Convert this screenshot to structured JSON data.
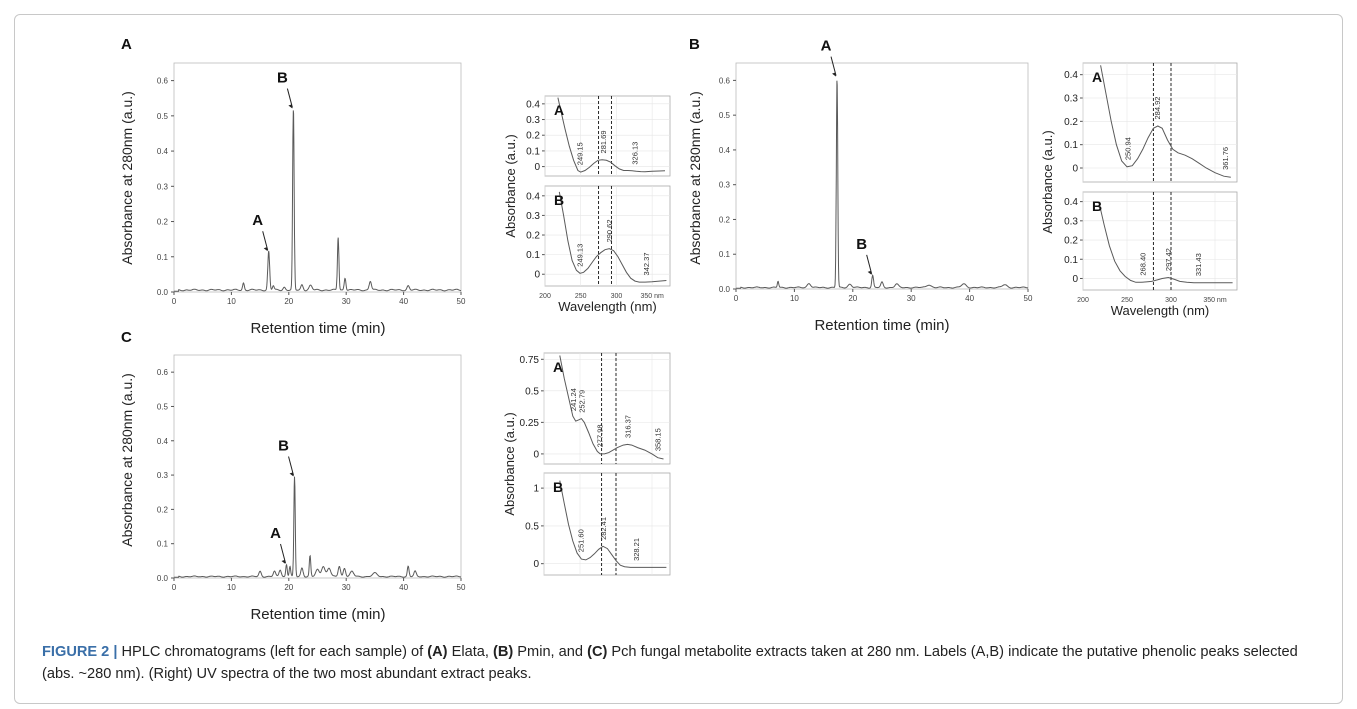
{
  "caption": {
    "lead": "FIGURE 2 |",
    "t1": " HPLC chromatograms (left for each sample) of ",
    "b1": "(A)",
    "t2": " Elata, ",
    "b2": "(B)",
    "t3": " Pmin, and ",
    "b3": "(C)",
    "t4": " Pch fungal metabolite extracts taken at 280 nm. Labels (A,B) indicate the putative phenolic peaks selected (abs. ~280 nm). (Right) UV spectra of the two most abundant extract peaks."
  },
  "colors": {
    "trace": "#5a5a5a",
    "caption_lead": "#3a6fa8",
    "axis": "#555555"
  },
  "chart_data": [
    {
      "panel": "A",
      "type": "line",
      "xlabel": "Retention time (min)",
      "ylabel": "Absorbance at 280nm (a.u.)",
      "xlim": [
        0,
        50
      ],
      "ylim": [
        0,
        0.65
      ],
      "xticks": [
        "0",
        "10",
        "20",
        "30",
        "40",
        "50"
      ],
      "yticks": [
        "0.0",
        "0.1",
        "0.2",
        "0.3",
        "0.4",
        "0.5",
        "0.6"
      ],
      "baseline": 0.008,
      "peaks": [
        [
          12.1,
          0.02,
          0.15
        ],
        [
          16.5,
          0.11,
          0.16
        ],
        [
          17.3,
          0.012,
          0.15
        ],
        [
          19.2,
          0.008,
          0.2
        ],
        [
          20.8,
          0.515,
          0.13
        ],
        [
          22.3,
          0.015,
          0.2
        ],
        [
          23.8,
          0.013,
          0.25
        ],
        [
          28.6,
          0.15,
          0.13
        ],
        [
          29.8,
          0.035,
          0.15
        ],
        [
          34.2,
          0.025,
          0.2
        ],
        [
          40.8,
          0.012,
          0.2
        ]
      ],
      "annotations": [
        {
          "label": "A",
          "x": 16.5,
          "y": 0.11
        },
        {
          "label": "B",
          "x": 20.8,
          "y": 0.515
        }
      ]
    },
    {
      "panel": "A-A",
      "type": "line",
      "xlabel": "",
      "ylabel": "",
      "xlim": [
        200,
        375
      ],
      "ylim": [
        -0.06,
        0.45
      ],
      "xticks": [
        "200",
        "250",
        "300",
        "350 nm"
      ],
      "yticks": [
        "0",
        "0.1",
        "0.2",
        "0.3",
        "0.4"
      ],
      "series": [
        {
          "x": [
            218,
            222,
            228,
            234,
            240,
            246,
            250,
            256,
            262,
            268,
            274,
            280,
            286,
            292,
            298,
            304,
            310,
            316,
            322,
            328,
            334,
            340,
            350,
            360,
            368
          ],
          "y": [
            0.44,
            0.36,
            0.24,
            0.13,
            0.04,
            -0.025,
            -0.035,
            -0.025,
            -0.005,
            0.02,
            0.04,
            0.043,
            0.04,
            0.028,
            0.005,
            -0.015,
            -0.025,
            -0.025,
            -0.027,
            -0.03,
            -0.032,
            -0.033,
            -0.03,
            -0.028,
            -0.026
          ]
        }
      ],
      "peak_labels": [
        {
          "text": "249.15",
          "x": 249.15
        },
        {
          "text": "281.69",
          "x": 281.69
        },
        {
          "text": "326.13",
          "x": 326.13
        }
      ],
      "dashed_lines": [
        275,
        293
      ],
      "letter": "A"
    },
    {
      "panel": "A-B",
      "type": "line",
      "xlabel": "Wavelength (nm)",
      "ylabel": "Absorbance (a.u.)",
      "xlim": [
        200,
        375
      ],
      "ylim": [
        -0.06,
        0.45
      ],
      "xticks": [
        "200",
        "250",
        "300",
        "350 nm"
      ],
      "yticks": [
        "0",
        "0.1",
        "0.2",
        "0.3",
        "0.4"
      ],
      "series": [
        {
          "x": [
            220,
            226,
            232,
            238,
            244,
            249,
            254,
            260,
            266,
            272,
            278,
            284,
            290,
            296,
            302,
            308,
            314,
            320,
            326,
            332,
            340,
            350,
            360,
            370
          ],
          "y": [
            0.42,
            0.3,
            0.17,
            0.07,
            0.02,
            0.005,
            0.01,
            0.03,
            0.06,
            0.09,
            0.11,
            0.125,
            0.13,
            0.12,
            0.09,
            0.05,
            0.01,
            -0.02,
            -0.035,
            -0.04,
            -0.04,
            -0.038,
            -0.035,
            -0.032
          ]
        }
      ],
      "peak_labels": [
        {
          "text": "249.13",
          "x": 249.13
        },
        {
          "text": "290.62",
          "x": 290.62
        },
        {
          "text": "342.37",
          "x": 342.37
        }
      ],
      "dashed_lines": [
        275,
        293
      ],
      "letter": "B"
    },
    {
      "panel": "B",
      "type": "line",
      "xlabel": "Retention time (min)",
      "ylabel": "Absorbance at 280nm (a.u.)",
      "xlim": [
        0,
        50
      ],
      "ylim": [
        0,
        0.65
      ],
      "xticks": [
        "0",
        "10",
        "20",
        "30",
        "40",
        "50"
      ],
      "yticks": [
        "0.0",
        "0.1",
        "0.2",
        "0.3",
        "0.4",
        "0.5",
        "0.6"
      ],
      "baseline": 0.006,
      "peaks": [
        [
          7.2,
          0.018,
          0.12
        ],
        [
          12.5,
          0.012,
          0.3
        ],
        [
          17.3,
          0.605,
          0.12
        ],
        [
          19.5,
          0.01,
          0.3
        ],
        [
          23.4,
          0.035,
          0.15
        ],
        [
          25.0,
          0.015,
          0.2
        ],
        [
          27.5,
          0.01,
          0.3
        ],
        [
          33.0,
          0.008,
          0.4
        ],
        [
          39.0,
          0.01,
          0.4
        ],
        [
          46.0,
          0.008,
          0.4
        ]
      ],
      "annotations": [
        {
          "label": "A",
          "x": 17.3,
          "y": 0.605
        },
        {
          "label": "B",
          "x": 23.4,
          "y": 0.035
        }
      ]
    },
    {
      "panel": "B-A",
      "type": "line",
      "xlabel": "",
      "ylabel": "Absorbance (a.u.)",
      "xlim": [
        200,
        375
      ],
      "ylim": [
        -0.06,
        0.45
      ],
      "xticks": [
        "200",
        "250",
        "300",
        "350 nm"
      ],
      "yticks": [
        "0",
        "0.1",
        "0.2",
        "0.3",
        "0.4"
      ],
      "series": [
        {
          "x": [
            220,
            226,
            232,
            238,
            244,
            250,
            256,
            262,
            268,
            274,
            280,
            285,
            290,
            296,
            302,
            308,
            316,
            324,
            332,
            340,
            350,
            360,
            368
          ],
          "y": [
            0.44,
            0.32,
            0.2,
            0.1,
            0.03,
            0.005,
            0.01,
            0.04,
            0.08,
            0.13,
            0.17,
            0.18,
            0.17,
            0.12,
            0.08,
            0.065,
            0.055,
            0.04,
            0.02,
            0.0,
            -0.02,
            -0.035,
            -0.04
          ]
        }
      ],
      "peak_labels": [
        {
          "text": "250.94",
          "x": 250.94
        },
        {
          "text": "284.92",
          "x": 284.92
        },
        {
          "text": "361.76",
          "x": 361.76
        }
      ],
      "dashed_lines": [
        280,
        300
      ],
      "letter": "A"
    },
    {
      "panel": "B-B",
      "type": "line",
      "xlabel": "Wavelength (nm)",
      "ylabel": "",
      "xlim": [
        200,
        375
      ],
      "ylim": [
        -0.06,
        0.45
      ],
      "xticks": [
        "200",
        "250",
        "300",
        "350 nm"
      ],
      "yticks": [
        "0",
        "0.1",
        "0.2",
        "0.3",
        "0.4"
      ],
      "series": [
        {
          "x": [
            218,
            224,
            230,
            236,
            242,
            248,
            254,
            260,
            266,
            272,
            278,
            284,
            290,
            297,
            304,
            310,
            318,
            326,
            334,
            342,
            350,
            360,
            370
          ],
          "y": [
            0.4,
            0.28,
            0.17,
            0.09,
            0.04,
            0.01,
            -0.01,
            -0.02,
            -0.02,
            -0.018,
            -0.015,
            -0.008,
            0.0,
            0.005,
            -0.005,
            -0.015,
            -0.02,
            -0.022,
            -0.022,
            -0.022,
            -0.022,
            -0.022,
            -0.022
          ]
        }
      ],
      "peak_labels": [
        {
          "text": "268.40",
          "x": 268.4
        },
        {
          "text": "297.42",
          "x": 297.42
        },
        {
          "text": "331.43",
          "x": 331.43
        }
      ],
      "dashed_lines": [
        280,
        300
      ],
      "letter": "B"
    },
    {
      "panel": "C",
      "type": "line",
      "xlabel": "Retention time (min)",
      "ylabel": "Absorbance at 280nm (a.u.)",
      "xlim": [
        0,
        50
      ],
      "ylim": [
        0,
        0.65
      ],
      "xticks": [
        "0",
        "10",
        "20",
        "30",
        "40",
        "50"
      ],
      "yticks": [
        "0.0",
        "0.1",
        "0.2",
        "0.3",
        "0.4",
        "0.5",
        "0.6"
      ],
      "baseline": 0.006,
      "peaks": [
        [
          15.0,
          0.015,
          0.2
        ],
        [
          17.5,
          0.015,
          0.2
        ],
        [
          18.5,
          0.02,
          0.2
        ],
        [
          19.6,
          0.035,
          0.13
        ],
        [
          20.2,
          0.03,
          0.13
        ],
        [
          21.0,
          0.29,
          0.12
        ],
        [
          22.3,
          0.025,
          0.2
        ],
        [
          23.7,
          0.06,
          0.13
        ],
        [
          25.0,
          0.02,
          0.3
        ],
        [
          26.0,
          0.03,
          0.3
        ],
        [
          27.0,
          0.025,
          0.3
        ],
        [
          28.8,
          0.03,
          0.2
        ],
        [
          29.7,
          0.025,
          0.2
        ],
        [
          31.0,
          0.015,
          0.3
        ],
        [
          35.0,
          0.01,
          0.4
        ],
        [
          40.8,
          0.03,
          0.15
        ],
        [
          42.0,
          0.015,
          0.2
        ]
      ],
      "annotations": [
        {
          "label": "A",
          "x": 19.6,
          "y": 0.035
        },
        {
          "label": "B",
          "x": 21.0,
          "y": 0.29
        }
      ]
    },
    {
      "panel": "C-A",
      "type": "line",
      "xlabel": "",
      "ylabel": "Absorbance (a.u.)",
      "xlim": [
        200,
        375
      ],
      "ylim": [
        -0.08,
        0.8
      ],
      "xticks": [
        "200",
        "250",
        "300",
        "350 nm"
      ],
      "yticks": [
        "0",
        "0.25",
        "0.5",
        "0.75"
      ],
      "series": [
        {
          "x": [
            222,
            228,
            234,
            240,
            244,
            248,
            252,
            256,
            262,
            268,
            274,
            278,
            284,
            290,
            296,
            302,
            310,
            316,
            322,
            330,
            340,
            350,
            358,
            366
          ],
          "y": [
            0.78,
            0.6,
            0.45,
            0.3,
            0.26,
            0.27,
            0.28,
            0.25,
            0.17,
            0.08,
            0.02,
            0.0,
            0.0,
            0.01,
            0.03,
            0.05,
            0.07,
            0.075,
            0.07,
            0.05,
            0.03,
            0.0,
            -0.03,
            -0.04
          ]
        }
      ],
      "peak_labels": [
        {
          "text": "241.24",
          "x": 241.24
        },
        {
          "text": "252.79",
          "x": 252.79
        },
        {
          "text": "277.98",
          "x": 277.98
        },
        {
          "text": "316.37",
          "x": 316.37
        },
        {
          "text": "358.15",
          "x": 358.15
        }
      ],
      "dashed_lines": [
        280,
        300
      ],
      "letter": "A"
    },
    {
      "panel": "C-B",
      "type": "line",
      "xlabel": "",
      "ylabel": "",
      "xlim": [
        200,
        375
      ],
      "ylim": [
        -0.15,
        1.2
      ],
      "xticks": [
        "200",
        "250",
        "300",
        "350 nm"
      ],
      "yticks": [
        "0",
        "0.5",
        "1"
      ],
      "series": [
        {
          "x": [
            222,
            228,
            234,
            240,
            246,
            252,
            258,
            264,
            270,
            276,
            282,
            288,
            294,
            300,
            306,
            312,
            320,
            330,
            340,
            350,
            360,
            370
          ],
          "y": [
            1.1,
            0.8,
            0.52,
            0.3,
            0.14,
            0.06,
            0.05,
            0.08,
            0.13,
            0.19,
            0.23,
            0.2,
            0.12,
            0.04,
            -0.02,
            -0.04,
            -0.05,
            -0.05,
            -0.05,
            -0.05,
            -0.05,
            -0.05
          ]
        }
      ],
      "peak_labels": [
        {
          "text": "251.60",
          "x": 251.6
        },
        {
          "text": "282.41",
          "x": 282.41
        },
        {
          "text": "328.21",
          "x": 328.21
        }
      ],
      "dashed_lines": [
        280,
        300
      ],
      "letter": "B"
    }
  ],
  "panel_letters": {
    "a": "A",
    "b": "B",
    "c": "C"
  }
}
